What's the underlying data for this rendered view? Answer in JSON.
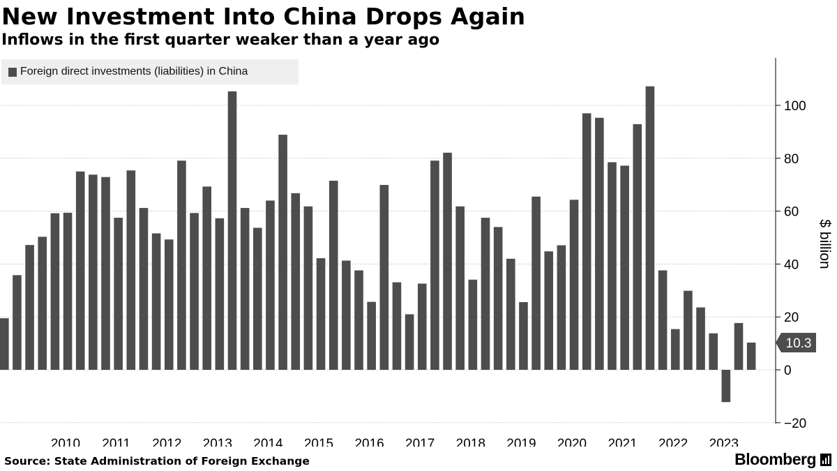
{
  "title": "New Investment Into China Drops Again",
  "subtitle": "Inflows in the first quarter weaker than a year ago",
  "source": "Source: State Administration of Foreign Exchange",
  "brand": "Bloomberg",
  "colors": {
    "bar": "#4d4d4d",
    "grid": "#c8c8c8",
    "axis": "#000000",
    "label_box": "#4d4d4d",
    "legend_bg": "#efefef"
  },
  "chart_data": {
    "type": "bar",
    "series": [
      {
        "name": "Foreign direct investments (liabilities) in China",
        "values": [
          19.5,
          35.8,
          47.2,
          50.3,
          59.2,
          59.4,
          75.0,
          73.8,
          72.9,
          57.5,
          75.4,
          61.2,
          51.6,
          49.3,
          79.1,
          59.3,
          69.3,
          57.3,
          105.3,
          61.2,
          53.7,
          64.0,
          88.9,
          66.8,
          61.8,
          42.2,
          71.5,
          41.3,
          37.6,
          25.7,
          69.9,
          33.1,
          21.0,
          32.6,
          79.1,
          82.1,
          61.8,
          34.1,
          57.5,
          54.0,
          42.0,
          25.6,
          65.5,
          44.8,
          47.1,
          64.3,
          97.0,
          95.3,
          78.5,
          77.2,
          92.9,
          107.2,
          37.6,
          15.4,
          29.9,
          23.6,
          13.8,
          -12.2,
          17.7,
          10.3
        ]
      }
    ],
    "x_labels": [
      "2010",
      "2011",
      "2012",
      "2013",
      "2014",
      "2015",
      "2016",
      "2017",
      "2018",
      "2019",
      "2020",
      "2021",
      "2022",
      "2023"
    ],
    "y_ticks": [
      -20,
      0,
      20,
      40,
      60,
      80,
      100
    ],
    "ylim": [
      -20,
      110
    ],
    "ylabel": "$ billion",
    "xlabel": "",
    "last_value_label": "10.3",
    "grid": true,
    "legend_position": "top-left"
  }
}
